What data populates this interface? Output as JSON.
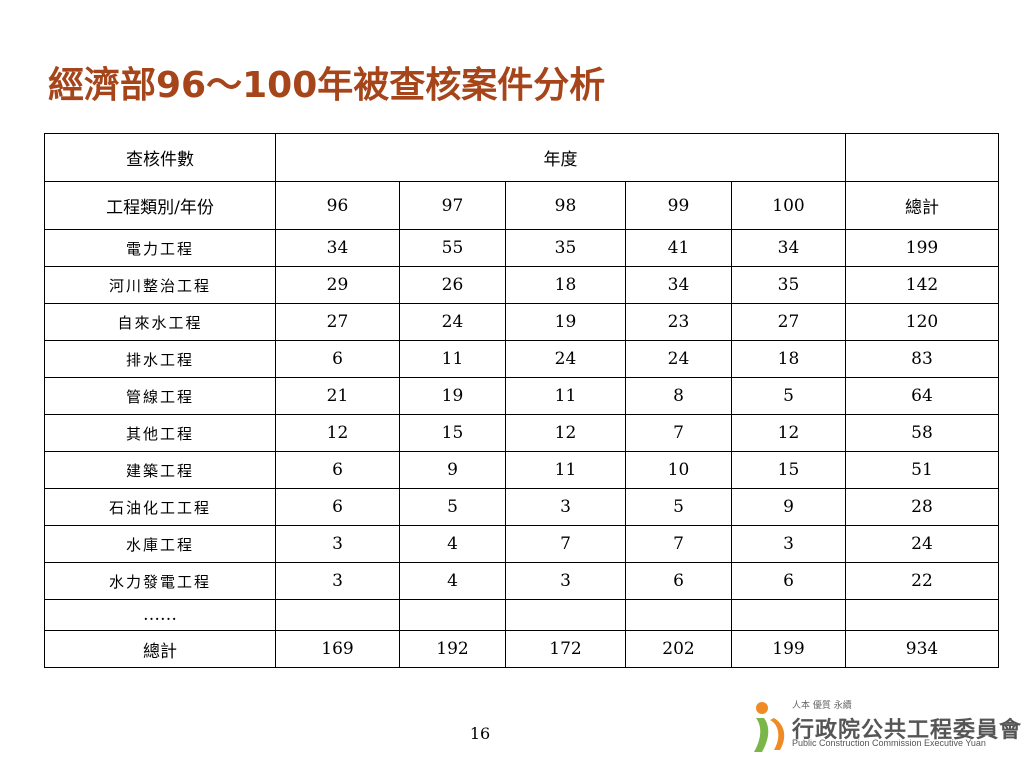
{
  "title": "經濟部96～100年被查核案件分析",
  "table": {
    "corner_header": "查核件數",
    "year_header": "年度",
    "row_header": "工程類別/年份",
    "years": [
      "96",
      "97",
      "98",
      "99",
      "100"
    ],
    "total_label": "總計",
    "rows": [
      {
        "category": "電力工程",
        "values": [
          "34",
          "55",
          "35",
          "41",
          "34"
        ],
        "total": "199"
      },
      {
        "category": "河川整治工程",
        "values": [
          "29",
          "26",
          "18",
          "34",
          "35"
        ],
        "total": "142"
      },
      {
        "category": "自來水工程",
        "values": [
          "27",
          "24",
          "19",
          "23",
          "27"
        ],
        "total": "120"
      },
      {
        "category": "排水工程",
        "values": [
          "6",
          "11",
          "24",
          "24",
          "18"
        ],
        "total": "83"
      },
      {
        "category": "管線工程",
        "values": [
          "21",
          "19",
          "11",
          "8",
          "5"
        ],
        "total": "64"
      },
      {
        "category": "其他工程",
        "values": [
          "12",
          "15",
          "12",
          "7",
          "12"
        ],
        "total": "58"
      },
      {
        "category": "建築工程",
        "values": [
          "6",
          "9",
          "11",
          "10",
          "15"
        ],
        "total": "51"
      },
      {
        "category": "石油化工工程",
        "values": [
          "6",
          "5",
          "3",
          "5",
          "9"
        ],
        "total": "28"
      },
      {
        "category": "水庫工程",
        "values": [
          "3",
          "4",
          "7",
          "7",
          "3"
        ],
        "total": "24"
      },
      {
        "category": "水力發電工程",
        "values": [
          "3",
          "4",
          "3",
          "6",
          "6"
        ],
        "total": "22"
      }
    ],
    "ellipsis": "……",
    "totals_label": "總計",
    "totals": [
      "169",
      "192",
      "172",
      "202",
      "199"
    ],
    "grand_total": "934"
  },
  "page_number": "16",
  "logo": {
    "slogan": "人本 優質 永續",
    "org_name": "行政院公共工程委員會",
    "org_name_en": "Public Construction Commission Executive Yuan"
  },
  "colors": {
    "title": "#a6441a",
    "logo_orange": "#f08a24",
    "logo_green": "#7ab648"
  }
}
